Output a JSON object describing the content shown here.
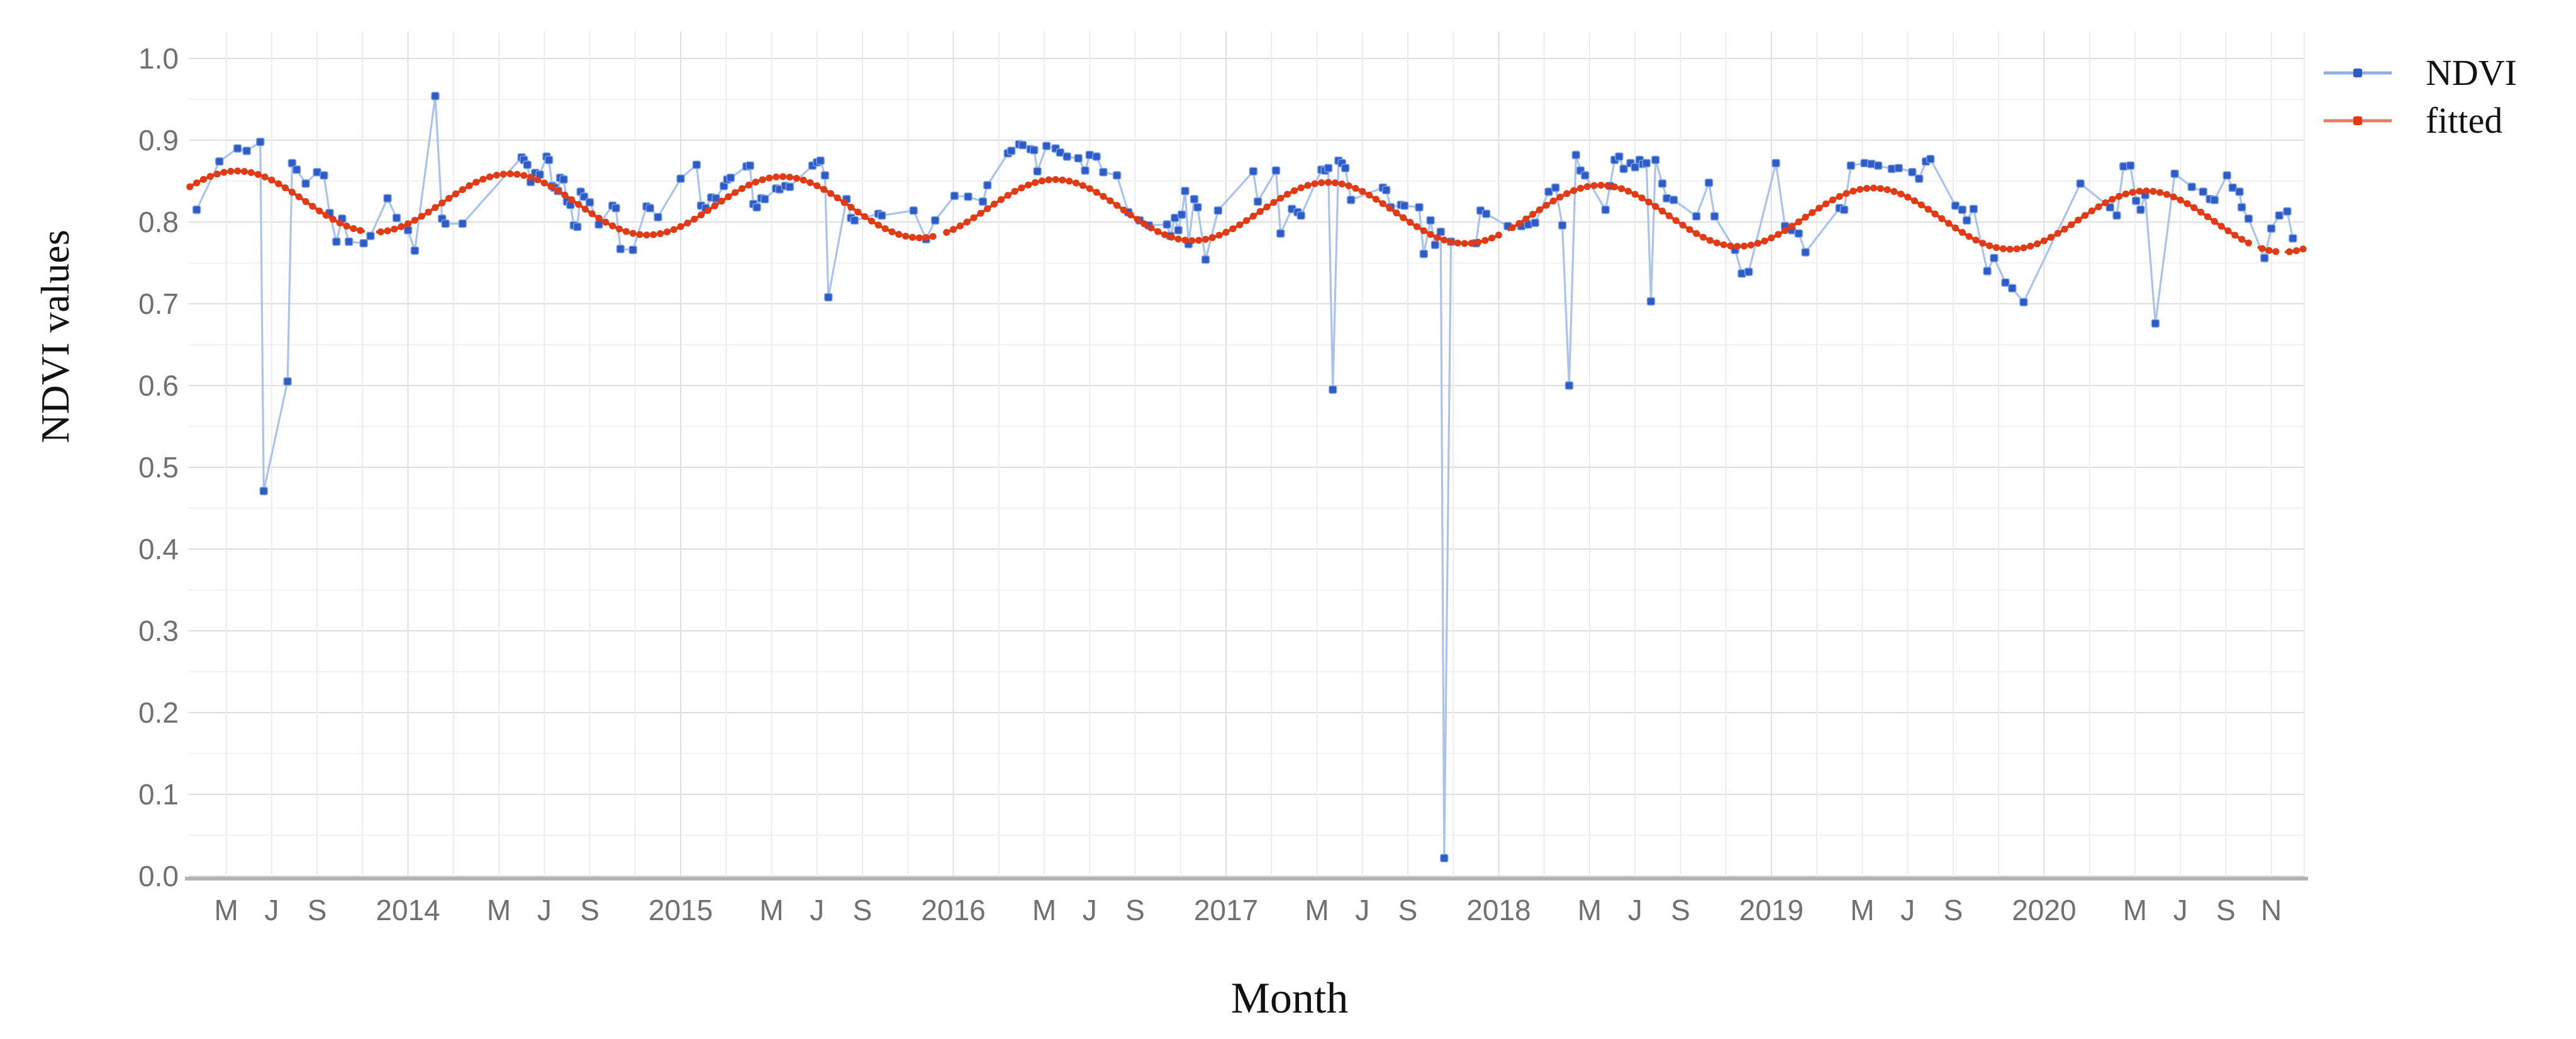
{
  "figure": {
    "background": "#ffffff"
  },
  "chart_data": {
    "type": "line",
    "title": "",
    "xlabel": "Month",
    "ylabel": "NDVI values",
    "x_unit": "months since Jan 2013",
    "xlim": [
      2.35,
      95.45
    ],
    "ylim": [
      0.0,
      1.0
    ],
    "grid": {
      "show": true,
      "major_color": "#dedede",
      "minor_color": "#f2f2f2",
      "vline_color": "#ececec",
      "vline_year_color": "#e0e0e0",
      "axis_line_color": "#b3b3b3",
      "tick_label_color": "#707070"
    },
    "y_ticks": [
      {
        "value": 0.0,
        "label": "0.0"
      },
      {
        "value": 0.1,
        "label": "0.1"
      },
      {
        "value": 0.2,
        "label": "0.2"
      },
      {
        "value": 0.3,
        "label": "0.3"
      },
      {
        "value": 0.4,
        "label": "0.4"
      },
      {
        "value": 0.5,
        "label": "0.5"
      },
      {
        "value": 0.6,
        "label": "0.6"
      },
      {
        "value": 0.7,
        "label": "0.7"
      },
      {
        "value": 0.8,
        "label": "0.8"
      },
      {
        "value": 0.9,
        "label": "0.9"
      },
      {
        "value": 1.0,
        "label": "1.0"
      }
    ],
    "x_ticks": [
      {
        "t": 4,
        "label": "M"
      },
      {
        "t": 6,
        "label": "J"
      },
      {
        "t": 8,
        "label": "S"
      },
      {
        "t": 12,
        "label": "2014"
      },
      {
        "t": 16,
        "label": "M"
      },
      {
        "t": 18,
        "label": "J"
      },
      {
        "t": 20,
        "label": "S"
      },
      {
        "t": 24,
        "label": "2015"
      },
      {
        "t": 28,
        "label": "M"
      },
      {
        "t": 30,
        "label": "J"
      },
      {
        "t": 32,
        "label": "S"
      },
      {
        "t": 36,
        "label": "2016"
      },
      {
        "t": 40,
        "label": "M"
      },
      {
        "t": 42,
        "label": "J"
      },
      {
        "t": 44,
        "label": "S"
      },
      {
        "t": 48,
        "label": "2017"
      },
      {
        "t": 52,
        "label": "M"
      },
      {
        "t": 54,
        "label": "J"
      },
      {
        "t": 56,
        "label": "S"
      },
      {
        "t": 60,
        "label": "2018"
      },
      {
        "t": 64,
        "label": "M"
      },
      {
        "t": 66,
        "label": "J"
      },
      {
        "t": 68,
        "label": "S"
      },
      {
        "t": 72,
        "label": "2019"
      },
      {
        "t": 76,
        "label": "M"
      },
      {
        "t": 78,
        "label": "J"
      },
      {
        "t": 80,
        "label": "S"
      },
      {
        "t": 84,
        "label": "2020"
      },
      {
        "t": 88,
        "label": "M"
      },
      {
        "t": 90,
        "label": "J"
      },
      {
        "t": 92,
        "label": "S"
      },
      {
        "t": 94,
        "label": "N"
      }
    ],
    "legend": {
      "position": "top-right",
      "entries": [
        {
          "label": "NDVI",
          "color": "#2d5cc8"
        },
        {
          "label": "fitted",
          "color": "#e13a15"
        }
      ]
    },
    "series": [
      {
        "name": "NDVI",
        "type": "scatter-line",
        "marker": "square",
        "marker_color": "#2d5cc8",
        "line_color": "#aac3ec",
        "points": [
          [
            2.7,
            0.815
          ],
          [
            3.7,
            0.874
          ],
          [
            4.5,
            0.89
          ],
          [
            4.9,
            0.887
          ],
          [
            5.5,
            0.898
          ],
          [
            5.65,
            0.471
          ],
          [
            6.7,
            0.605
          ],
          [
            6.9,
            0.872
          ],
          [
            7.1,
            0.864
          ],
          [
            7.5,
            0.847
          ],
          [
            8.0,
            0.861
          ],
          [
            8.3,
            0.857
          ],
          [
            8.55,
            0.811
          ],
          [
            8.85,
            0.776
          ],
          [
            9.1,
            0.804
          ],
          [
            9.4,
            0.776
          ],
          [
            10.05,
            0.774
          ],
          [
            10.35,
            0.783
          ],
          [
            11.1,
            0.829
          ],
          [
            11.5,
            0.805
          ],
          [
            12.0,
            0.79
          ],
          [
            12.3,
            0.765
          ],
          [
            13.2,
            0.954
          ],
          [
            13.5,
            0.804
          ],
          [
            13.65,
            0.798
          ],
          [
            14.4,
            0.798
          ],
          [
            17.0,
            0.879
          ],
          [
            17.1,
            0.876
          ],
          [
            17.25,
            0.87
          ],
          [
            17.4,
            0.849
          ],
          [
            17.6,
            0.86
          ],
          [
            17.8,
            0.858
          ],
          [
            18.1,
            0.88
          ],
          [
            18.2,
            0.876
          ],
          [
            18.35,
            0.844
          ],
          [
            18.45,
            0.842
          ],
          [
            18.6,
            0.838
          ],
          [
            18.7,
            0.854
          ],
          [
            18.85,
            0.852
          ],
          [
            19.0,
            0.825
          ],
          [
            19.15,
            0.821
          ],
          [
            19.3,
            0.796
          ],
          [
            19.45,
            0.794
          ],
          [
            19.6,
            0.837
          ],
          [
            19.75,
            0.831
          ],
          [
            20.0,
            0.824
          ],
          [
            20.4,
            0.797
          ],
          [
            21.0,
            0.82
          ],
          [
            21.15,
            0.817
          ],
          [
            21.35,
            0.767
          ],
          [
            21.9,
            0.766
          ],
          [
            22.5,
            0.819
          ],
          [
            22.65,
            0.817
          ],
          [
            23.0,
            0.806
          ],
          [
            24.0,
            0.853
          ],
          [
            24.7,
            0.87
          ],
          [
            24.9,
            0.82
          ],
          [
            25.1,
            0.817
          ],
          [
            25.35,
            0.83
          ],
          [
            25.55,
            0.829
          ],
          [
            25.9,
            0.844
          ],
          [
            26.05,
            0.852
          ],
          [
            26.2,
            0.854
          ],
          [
            26.9,
            0.868
          ],
          [
            27.05,
            0.869
          ],
          [
            27.2,
            0.822
          ],
          [
            27.35,
            0.818
          ],
          [
            27.55,
            0.829
          ],
          [
            27.7,
            0.828
          ],
          [
            28.2,
            0.841
          ],
          [
            28.35,
            0.84
          ],
          [
            28.6,
            0.844
          ],
          [
            28.8,
            0.843
          ],
          [
            29.8,
            0.869
          ],
          [
            30.0,
            0.873
          ],
          [
            30.15,
            0.875
          ],
          [
            30.35,
            0.857
          ],
          [
            30.5,
            0.708
          ],
          [
            31.3,
            0.828
          ],
          [
            31.5,
            0.805
          ],
          [
            31.65,
            0.802
          ],
          [
            32.7,
            0.81
          ],
          [
            32.85,
            0.808
          ],
          [
            34.25,
            0.814
          ],
          [
            34.8,
            0.779
          ],
          [
            35.2,
            0.802
          ],
          [
            36.05,
            0.832
          ],
          [
            36.65,
            0.831
          ],
          [
            37.3,
            0.825
          ],
          [
            37.5,
            0.845
          ],
          [
            38.4,
            0.884
          ],
          [
            38.55,
            0.887
          ],
          [
            38.9,
            0.895
          ],
          [
            39.05,
            0.894
          ],
          [
            39.4,
            0.889
          ],
          [
            39.55,
            0.888
          ],
          [
            39.7,
            0.862
          ],
          [
            40.1,
            0.893
          ],
          [
            40.5,
            0.89
          ],
          [
            40.7,
            0.885
          ],
          [
            41.0,
            0.88
          ],
          [
            41.5,
            0.878
          ],
          [
            41.8,
            0.863
          ],
          [
            42.0,
            0.882
          ],
          [
            42.3,
            0.88
          ],
          [
            42.6,
            0.861
          ],
          [
            43.2,
            0.857
          ],
          [
            43.7,
            0.812
          ],
          [
            44.2,
            0.802
          ],
          [
            44.6,
            0.796
          ],
          [
            45.4,
            0.797
          ],
          [
            45.55,
            0.783
          ],
          [
            45.75,
            0.805
          ],
          [
            45.9,
            0.79
          ],
          [
            46.05,
            0.809
          ],
          [
            46.2,
            0.838
          ],
          [
            46.35,
            0.773
          ],
          [
            46.6,
            0.828
          ],
          [
            46.75,
            0.818
          ],
          [
            47.1,
            0.754
          ],
          [
            47.65,
            0.814
          ],
          [
            49.2,
            0.862
          ],
          [
            49.4,
            0.825
          ],
          [
            50.2,
            0.863
          ],
          [
            50.4,
            0.786
          ],
          [
            50.9,
            0.816
          ],
          [
            51.15,
            0.812
          ],
          [
            51.3,
            0.808
          ],
          [
            52.2,
            0.864
          ],
          [
            52.35,
            0.863
          ],
          [
            52.5,
            0.866
          ],
          [
            52.7,
            0.595
          ],
          [
            52.95,
            0.875
          ],
          [
            53.1,
            0.872
          ],
          [
            53.25,
            0.866
          ],
          [
            53.5,
            0.827
          ],
          [
            54.9,
            0.842
          ],
          [
            55.05,
            0.839
          ],
          [
            55.25,
            0.818
          ],
          [
            55.7,
            0.821
          ],
          [
            55.85,
            0.82
          ],
          [
            56.5,
            0.818
          ],
          [
            56.7,
            0.761
          ],
          [
            57.0,
            0.802
          ],
          [
            57.2,
            0.772
          ],
          [
            57.45,
            0.788
          ],
          [
            57.6,
            0.022
          ],
          [
            57.9,
            0.776
          ],
          [
            59.0,
            0.774
          ],
          [
            59.2,
            0.814
          ],
          [
            59.45,
            0.81
          ],
          [
            60.4,
            0.795
          ],
          [
            61.0,
            0.795
          ],
          [
            61.3,
            0.797
          ],
          [
            61.6,
            0.799
          ],
          [
            62.2,
            0.837
          ],
          [
            62.5,
            0.842
          ],
          [
            62.8,
            0.796
          ],
          [
            63.1,
            0.6
          ],
          [
            63.4,
            0.882
          ],
          [
            63.6,
            0.863
          ],
          [
            63.8,
            0.857
          ],
          [
            64.7,
            0.815
          ],
          [
            64.9,
            0.844
          ],
          [
            65.1,
            0.876
          ],
          [
            65.3,
            0.88
          ],
          [
            65.5,
            0.865
          ],
          [
            65.8,
            0.872
          ],
          [
            66.0,
            0.867
          ],
          [
            66.2,
            0.876
          ],
          [
            66.35,
            0.871
          ],
          [
            66.5,
            0.872
          ],
          [
            66.7,
            0.703
          ],
          [
            66.9,
            0.876
          ],
          [
            67.2,
            0.847
          ],
          [
            67.4,
            0.829
          ],
          [
            67.7,
            0.827
          ],
          [
            68.7,
            0.807
          ],
          [
            69.25,
            0.848
          ],
          [
            69.5,
            0.807
          ],
          [
            70.4,
            0.766
          ],
          [
            70.7,
            0.737
          ],
          [
            71.0,
            0.739
          ],
          [
            72.2,
            0.872
          ],
          [
            72.6,
            0.795
          ],
          [
            72.9,
            0.79
          ],
          [
            73.2,
            0.786
          ],
          [
            73.5,
            0.763
          ],
          [
            75.0,
            0.817
          ],
          [
            75.2,
            0.815
          ],
          [
            75.5,
            0.869
          ],
          [
            76.1,
            0.872
          ],
          [
            76.4,
            0.871
          ],
          [
            76.7,
            0.869
          ],
          [
            77.3,
            0.865
          ],
          [
            77.6,
            0.866
          ],
          [
            78.2,
            0.861
          ],
          [
            78.5,
            0.853
          ],
          [
            78.8,
            0.874
          ],
          [
            79.0,
            0.877
          ],
          [
            80.1,
            0.82
          ],
          [
            80.4,
            0.815
          ],
          [
            80.6,
            0.802
          ],
          [
            80.9,
            0.816
          ],
          [
            81.5,
            0.74
          ],
          [
            81.8,
            0.756
          ],
          [
            82.3,
            0.726
          ],
          [
            82.6,
            0.719
          ],
          [
            83.1,
            0.702
          ],
          [
            85.6,
            0.847
          ],
          [
            86.9,
            0.818
          ],
          [
            87.2,
            0.808
          ],
          [
            87.5,
            0.868
          ],
          [
            87.8,
            0.869
          ],
          [
            88.05,
            0.826
          ],
          [
            88.25,
            0.815
          ],
          [
            88.45,
            0.833
          ],
          [
            88.9,
            0.676
          ],
          [
            89.75,
            0.859
          ],
          [
            90.5,
            0.843
          ],
          [
            91.0,
            0.837
          ],
          [
            91.3,
            0.828
          ],
          [
            91.5,
            0.827
          ],
          [
            92.05,
            0.857
          ],
          [
            92.3,
            0.842
          ],
          [
            92.6,
            0.837
          ],
          [
            92.7,
            0.818
          ],
          [
            93.0,
            0.804
          ],
          [
            93.7,
            0.756
          ],
          [
            94.0,
            0.792
          ],
          [
            94.35,
            0.808
          ],
          [
            94.7,
            0.813
          ],
          [
            94.95,
            0.78
          ]
        ]
      },
      {
        "name": "fitted",
        "type": "fitted-curve",
        "color": "#e13a15",
        "model": {
          "formula": "v(t) = base + slope*t + amp*cos(2*pi*(t - phase)/12)",
          "base": 0.8272,
          "slope": -0.00029,
          "amp": 0.0365,
          "phase": 4.5,
          "t_start": 2.4,
          "t_end": 95.4,
          "gaps": [
            [
              10.15,
              10.55
            ],
            [
              35.3,
              35.65
            ],
            [
              60.05,
              60.4
            ],
            [
              93.05,
              93.35
            ],
            [
              94.2,
              94.5
            ]
          ]
        }
      }
    ]
  }
}
